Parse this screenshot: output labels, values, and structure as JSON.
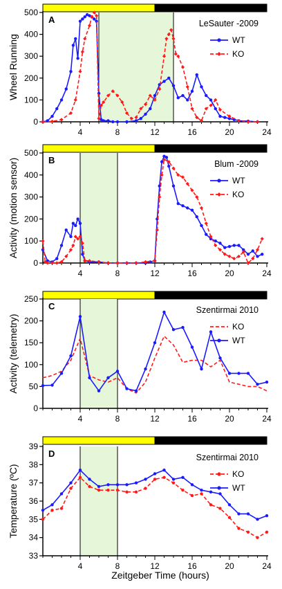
{
  "xlabel": "Zeitgeber Time (hours)",
  "colors": {
    "WT": "#1a1aff",
    "KO": "#ff1a1a",
    "light": "#ffff00",
    "dark": "#000000",
    "shade": "#e6f7d9"
  },
  "chart_data": [
    {
      "type": "line",
      "panel": "A",
      "title": "LeSauter -2009",
      "ylabel": "Wheel Running",
      "xlim": [
        0,
        24
      ],
      "ylim": [
        0,
        500
      ],
      "xticks": [
        4,
        8,
        12,
        16,
        20,
        24
      ],
      "yticks": [
        0,
        100,
        200,
        300,
        400,
        500
      ],
      "light_period": [
        0,
        12
      ],
      "shaded": [
        6,
        14
      ],
      "vlines": [
        6,
        14
      ],
      "legend": {
        "placement": "top-right",
        "order": [
          "WT",
          "KO"
        ]
      },
      "series": [
        {
          "name": "WT",
          "marker": "dot",
          "dash": false,
          "x": [
            0,
            0.5,
            1,
            1.5,
            2,
            2.5,
            3,
            3.25,
            3.5,
            3.75,
            4,
            4.25,
            4.5,
            4.75,
            5,
            5.25,
            5.5,
            5.75,
            6,
            6.25,
            6.5,
            7,
            7.5,
            8,
            9,
            10,
            10.5,
            11,
            11.5,
            12,
            12.5,
            13,
            13.5,
            14,
            14.5,
            15,
            15.5,
            16,
            16.5,
            17,
            17.5,
            18,
            18.5,
            19,
            19.5,
            20,
            20.5,
            21,
            22,
            23
          ],
          "y": [
            0,
            5,
            25,
            60,
            100,
            150,
            230,
            350,
            380,
            290,
            460,
            470,
            480,
            490,
            485,
            480,
            470,
            460,
            130,
            10,
            5,
            5,
            0,
            0,
            0,
            5,
            15,
            35,
            60,
            120,
            170,
            185,
            200,
            165,
            110,
            120,
            100,
            140,
            215,
            160,
            120,
            100,
            60,
            25,
            20,
            15,
            10,
            5,
            3,
            0
          ]
        },
        {
          "name": "KO",
          "marker": "diamond",
          "dash": true,
          "x": [
            0,
            1,
            2,
            3,
            3.5,
            4,
            4.25,
            4.5,
            5,
            5.25,
            5.5,
            5.75,
            6,
            6.25,
            6.5,
            7,
            7.5,
            8,
            8.5,
            9,
            9.5,
            10,
            10.5,
            11,
            11.5,
            12,
            12.5,
            13,
            13.25,
            13.5,
            13.75,
            14,
            14.25,
            14.5,
            15,
            15.5,
            16,
            16.5,
            17,
            17.5,
            18,
            18.5,
            19,
            20,
            21,
            22,
            23
          ],
          "y": [
            0,
            2,
            10,
            40,
            100,
            230,
            320,
            380,
            440,
            480,
            500,
            485,
            15,
            75,
            90,
            120,
            140,
            120,
            90,
            40,
            15,
            20,
            60,
            80,
            120,
            100,
            150,
            300,
            380,
            400,
            420,
            380,
            310,
            300,
            250,
            160,
            60,
            20,
            5,
            60,
            75,
            100,
            55,
            25,
            5,
            0,
            0
          ]
        }
      ]
    },
    {
      "type": "line",
      "panel": "B",
      "title": "Blum -2009",
      "ylabel": "Activity (motion sensor)",
      "xlim": [
        0,
        24
      ],
      "ylim": [
        0,
        500
      ],
      "xticks": [
        4,
        8,
        12,
        16,
        20,
        24
      ],
      "yticks": [
        0,
        100,
        200,
        300,
        400,
        500
      ],
      "light_period": [
        0,
        12
      ],
      "shaded": [
        4,
        8
      ],
      "vlines": [
        4,
        8
      ],
      "legend": {
        "placement": "top-right",
        "order": [
          "WT",
          "KO"
        ]
      },
      "series": [
        {
          "name": "WT",
          "marker": "dot",
          "dash": false,
          "x": [
            0,
            0.5,
            1,
            1.5,
            2,
            2.5,
            3,
            3.25,
            3.5,
            3.75,
            4,
            4.25,
            4.5,
            5,
            6,
            7,
            8,
            9,
            10,
            11,
            11.5,
            12,
            12.25,
            12.5,
            12.75,
            13,
            13.25,
            13.5,
            14,
            14.5,
            15,
            15.5,
            16,
            16.5,
            17,
            17.5,
            18,
            18.5,
            19,
            19.5,
            20,
            20.5,
            21,
            21.5,
            22,
            22.5,
            23,
            23.5
          ],
          "y": [
            60,
            10,
            5,
            20,
            80,
            150,
            120,
            180,
            170,
            200,
            180,
            40,
            10,
            5,
            5,
            0,
            0,
            0,
            0,
            0,
            5,
            10,
            200,
            350,
            460,
            485,
            480,
            440,
            350,
            270,
            260,
            250,
            240,
            210,
            170,
            130,
            110,
            100,
            90,
            70,
            75,
            80,
            80,
            60,
            40,
            55,
            30,
            40
          ]
        },
        {
          "name": "KO",
          "marker": "diamond",
          "dash": true,
          "x": [
            0,
            0.25,
            0.5,
            1,
            1.5,
            2,
            2.5,
            3,
            3.25,
            3.5,
            3.75,
            4,
            4.25,
            4.5,
            5,
            6,
            7,
            8,
            9,
            10,
            11,
            12,
            12.25,
            12.5,
            12.75,
            13,
            13.5,
            14,
            14.5,
            15,
            15.5,
            16,
            16.5,
            17,
            17.5,
            18,
            18.5,
            19,
            19.5,
            20,
            20.5,
            21,
            21.5,
            22,
            22.5,
            23,
            23.5
          ],
          "y": [
            100,
            5,
            0,
            0,
            0,
            5,
            30,
            60,
            80,
            120,
            110,
            120,
            90,
            10,
            10,
            5,
            0,
            0,
            0,
            0,
            5,
            10,
            150,
            300,
            400,
            470,
            460,
            430,
            400,
            390,
            360,
            330,
            300,
            250,
            180,
            120,
            80,
            60,
            40,
            30,
            20,
            30,
            50,
            0,
            20,
            60,
            110
          ]
        }
      ]
    },
    {
      "type": "line",
      "panel": "C",
      "title": "Szentirmai 2010",
      "ylabel": "Activity (telemetry)",
      "xlim": [
        0,
        24
      ],
      "ylim": [
        0,
        250
      ],
      "xticks": [
        4,
        8,
        12,
        16,
        20,
        24
      ],
      "yticks": [
        0,
        50,
        100,
        150,
        200,
        250
      ],
      "light_period": [
        0,
        12
      ],
      "shaded": [
        4,
        8
      ],
      "vlines": [
        4,
        8
      ],
      "legend": {
        "placement": "top-right",
        "order": [
          "KO",
          "WT"
        ]
      },
      "series": [
        {
          "name": "KO",
          "marker": "none",
          "dash": true,
          "x": [
            0,
            1,
            2,
            3,
            4,
            5,
            6,
            7,
            8,
            9,
            10,
            11,
            12,
            13,
            14,
            15,
            16,
            17,
            18,
            19,
            20,
            21,
            22,
            23,
            24
          ],
          "y": [
            70,
            75,
            85,
            110,
            160,
            75,
            65,
            60,
            70,
            45,
            35,
            60,
            115,
            165,
            145,
            105,
            110,
            110,
            95,
            110,
            60,
            55,
            50,
            50,
            40
          ]
        },
        {
          "name": "WT",
          "marker": "dot",
          "dash": false,
          "x": [
            0,
            1,
            2,
            3,
            4,
            5,
            6,
            7,
            8,
            9,
            10,
            11,
            12,
            13,
            14,
            15,
            16,
            17,
            18,
            19,
            20,
            21,
            22,
            23,
            24
          ],
          "y": [
            52,
            53,
            80,
            120,
            210,
            70,
            40,
            70,
            85,
            45,
            40,
            90,
            150,
            220,
            180,
            185,
            140,
            90,
            175,
            115,
            80,
            80,
            80,
            55,
            60
          ]
        }
      ]
    },
    {
      "type": "line",
      "panel": "D",
      "title": "Szentirmai 2010",
      "ylabel": "Temperature (ºC)",
      "xlim": [
        0,
        24
      ],
      "ylim": [
        33,
        39
      ],
      "xticks": [
        4,
        8,
        12,
        16,
        20,
        24
      ],
      "yticks": [
        33,
        34,
        35,
        36,
        37,
        38,
        39
      ],
      "light_period": [
        0,
        12
      ],
      "shaded": [
        4,
        8
      ],
      "vlines": [
        4,
        8
      ],
      "legend": {
        "placement": "top-right",
        "order": [
          "KO",
          "WT"
        ]
      },
      "series": [
        {
          "name": "KO",
          "marker": "dot",
          "dash": true,
          "x": [
            0,
            1,
            2,
            3,
            4,
            5,
            6,
            7,
            8,
            9,
            10,
            11,
            12,
            13,
            14,
            15,
            16,
            17,
            18,
            19,
            20,
            21,
            22,
            23,
            24
          ],
          "y": [
            35.0,
            35.5,
            35.6,
            36.7,
            37.3,
            36.8,
            36.6,
            36.6,
            36.6,
            36.5,
            36.5,
            36.7,
            37.2,
            37.3,
            37.0,
            36.6,
            36.3,
            36.4,
            35.8,
            35.6,
            35.1,
            34.5,
            34.3,
            34.0,
            34.3
          ]
        },
        {
          "name": "WT",
          "marker": "dot",
          "dash": false,
          "x": [
            0,
            1,
            2,
            3,
            4,
            5,
            6,
            7,
            8,
            9,
            10,
            11,
            12,
            13,
            14,
            15,
            16,
            17,
            18,
            19,
            20,
            21,
            22,
            23,
            24
          ],
          "y": [
            35.5,
            35.8,
            36.4,
            37.0,
            37.7,
            37.2,
            36.8,
            36.9,
            36.9,
            36.9,
            37.0,
            37.2,
            37.5,
            37.7,
            37.2,
            37.3,
            36.9,
            36.6,
            36.5,
            36.4,
            35.8,
            35.3,
            35.3,
            35.0,
            35.2
          ]
        }
      ]
    }
  ]
}
